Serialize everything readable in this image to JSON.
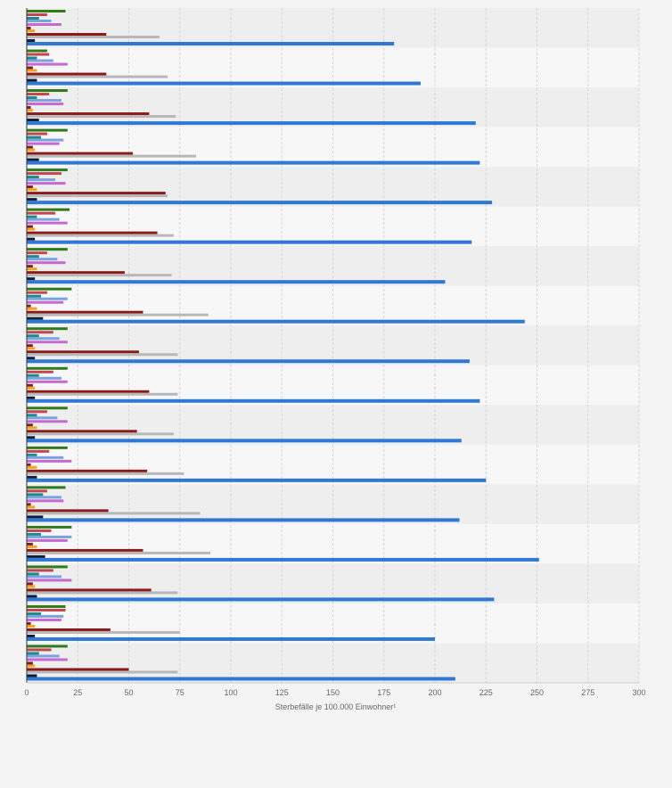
{
  "chart_data": {
    "type": "bar",
    "orientation": "horizontal",
    "xlabel": "Sterbefälle je 100.000 Einwohner¹",
    "xlim": [
      0,
      300
    ],
    "xticks": [
      0,
      25,
      50,
      75,
      100,
      125,
      150,
      175,
      200,
      225,
      250,
      275,
      300
    ],
    "grid": true,
    "legend": "none",
    "colors": [
      "#2f7a1a",
      "#c2454f",
      "#1b8a8a",
      "#7aa3e0",
      "#c46ad1",
      "#7a1f2e",
      "#f2a51c",
      "#8b1a1a",
      "#b8b8b8",
      "#0f1f3a",
      "#2f78d4"
    ],
    "groups": 17,
    "series": [
      {
        "values": [
          19,
          10,
          20,
          20,
          20,
          21,
          20,
          22,
          20,
          20,
          20,
          20,
          19,
          22,
          20,
          19,
          20
        ]
      },
      {
        "values": [
          10,
          11,
          11,
          10,
          17,
          14,
          10,
          10,
          13,
          13,
          10,
          11,
          10,
          12,
          13,
          19,
          12
        ]
      },
      {
        "values": [
          6,
          5,
          5,
          7,
          6,
          5,
          6,
          7,
          6,
          6,
          5,
          5,
          8,
          7,
          6,
          7,
          6
        ]
      },
      {
        "values": [
          12,
          13,
          17,
          18,
          14,
          16,
          15,
          20,
          16,
          17,
          15,
          18,
          17,
          22,
          17,
          18,
          16
        ]
      },
      {
        "values": [
          17,
          20,
          18,
          16,
          19,
          20,
          19,
          18,
          20,
          20,
          20,
          22,
          18,
          20,
          22,
          17,
          20
        ]
      },
      {
        "values": [
          2,
          3,
          2,
          3,
          3,
          3,
          3,
          2,
          3,
          3,
          3,
          2,
          2,
          3,
          3,
          2,
          3
        ]
      },
      {
        "values": [
          4,
          5,
          3,
          4,
          5,
          4,
          5,
          5,
          4,
          4,
          5,
          5,
          4,
          5,
          4,
          4,
          4
        ]
      },
      {
        "values": [
          39,
          39,
          60,
          52,
          68,
          64,
          48,
          57,
          55,
          60,
          54,
          59,
          40,
          57,
          61,
          41,
          50
        ]
      },
      {
        "values": [
          65,
          69,
          73,
          83,
          69,
          72,
          71,
          89,
          74,
          74,
          72,
          77,
          85,
          90,
          74,
          75,
          74
        ]
      },
      {
        "values": [
          4,
          5,
          6,
          6,
          5,
          4,
          4,
          8,
          4,
          4,
          4,
          5,
          8,
          9,
          5,
          4,
          5
        ]
      },
      {
        "values": [
          180,
          193,
          220,
          222,
          228,
          218,
          205,
          244,
          217,
          222,
          213,
          225,
          212,
          251,
          229,
          200,
          210
        ]
      }
    ]
  }
}
